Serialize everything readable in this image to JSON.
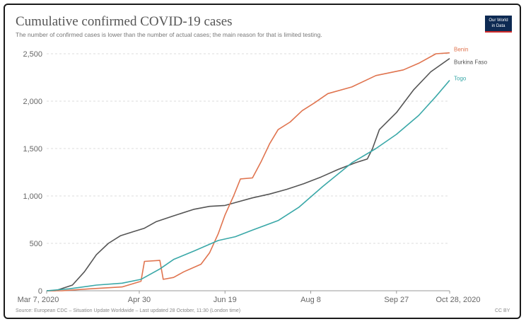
{
  "header": {
    "title": "Cumulative confirmed COVID-19 cases",
    "subtitle": "The number of confirmed cases is lower than the number of actual cases; the main reason for that is limited testing.",
    "logo_line1": "Our World",
    "logo_line2": "in Data"
  },
  "footer": {
    "source": "Source: European CDC – Situation Update Worldwide – Last updated 28 October, 11:30 (London time)",
    "license": "CC BY"
  },
  "colors": {
    "Benin": "#e0744f",
    "Burkina Faso": "#555555",
    "Togo": "#3aa8a8"
  },
  "chart_data": {
    "type": "line",
    "title": "Cumulative confirmed COVID-19 cases",
    "xlabel": "",
    "ylabel": "",
    "x_start": "2020-03-07",
    "x_end": "2020-10-28",
    "ylim": [
      0,
      2500
    ],
    "yticks": [
      0,
      500,
      1000,
      1500,
      2000,
      2500
    ],
    "ytick_labels": [
      "0",
      "500",
      "1,000",
      "1,500",
      "2,000",
      "2,500"
    ],
    "xticks": [
      "2020-03-07",
      "2020-04-30",
      "2020-06-19",
      "2020-08-08",
      "2020-09-27",
      "2020-10-28"
    ],
    "xtick_labels": [
      "Mar 7, 2020",
      "Apr 30",
      "Jun 19",
      "Aug 8",
      "Sep 27",
      "Oct 28, 2020"
    ],
    "grid": true,
    "legend": "right-end labels",
    "series": [
      {
        "name": "Burkina Faso",
        "points": [
          [
            "2020-03-07",
            0
          ],
          [
            "2020-03-12",
            0
          ],
          [
            "2020-03-22",
            60
          ],
          [
            "2020-03-29",
            200
          ],
          [
            "2020-04-05",
            380
          ],
          [
            "2020-04-12",
            500
          ],
          [
            "2020-04-19",
            580
          ],
          [
            "2020-04-26",
            620
          ],
          [
            "2020-05-03",
            660
          ],
          [
            "2020-05-10",
            730
          ],
          [
            "2020-05-20",
            790
          ],
          [
            "2020-06-01",
            860
          ],
          [
            "2020-06-10",
            890
          ],
          [
            "2020-06-19",
            900
          ],
          [
            "2020-06-25",
            930
          ],
          [
            "2020-07-05",
            980
          ],
          [
            "2020-07-15",
            1020
          ],
          [
            "2020-07-25",
            1070
          ],
          [
            "2020-08-04",
            1130
          ],
          [
            "2020-08-14",
            1200
          ],
          [
            "2020-08-24",
            1280
          ],
          [
            "2020-09-03",
            1350
          ],
          [
            "2020-09-10",
            1390
          ],
          [
            "2020-09-13",
            1500
          ],
          [
            "2020-09-17",
            1700
          ],
          [
            "2020-09-27",
            1880
          ],
          [
            "2020-10-07",
            2120
          ],
          [
            "2020-10-17",
            2310
          ],
          [
            "2020-10-28",
            2450
          ]
        ]
      },
      {
        "name": "Benin",
        "points": [
          [
            "2020-03-07",
            0
          ],
          [
            "2020-03-16",
            0
          ],
          [
            "2020-04-01",
            20
          ],
          [
            "2020-04-20",
            40
          ],
          [
            "2020-05-01",
            100
          ],
          [
            "2020-05-03",
            310
          ],
          [
            "2020-05-12",
            320
          ],
          [
            "2020-05-14",
            120
          ],
          [
            "2020-05-20",
            140
          ],
          [
            "2020-05-26",
            200
          ],
          [
            "2020-06-05",
            280
          ],
          [
            "2020-06-10",
            400
          ],
          [
            "2020-06-15",
            600
          ],
          [
            "2020-06-19",
            800
          ],
          [
            "2020-06-24",
            1000
          ],
          [
            "2020-06-28",
            1180
          ],
          [
            "2020-07-05",
            1190
          ],
          [
            "2020-07-10",
            1360
          ],
          [
            "2020-07-15",
            1550
          ],
          [
            "2020-07-20",
            1700
          ],
          [
            "2020-07-27",
            1780
          ],
          [
            "2020-08-03",
            1900
          ],
          [
            "2020-08-10",
            1980
          ],
          [
            "2020-08-18",
            2080
          ],
          [
            "2020-09-01",
            2150
          ],
          [
            "2020-09-15",
            2270
          ],
          [
            "2020-10-01",
            2330
          ],
          [
            "2020-10-10",
            2400
          ],
          [
            "2020-10-20",
            2500
          ],
          [
            "2020-10-28",
            2510
          ]
        ]
      },
      {
        "name": "Togo",
        "points": [
          [
            "2020-03-07",
            0
          ],
          [
            "2020-03-20",
            20
          ],
          [
            "2020-04-05",
            60
          ],
          [
            "2020-04-20",
            80
          ],
          [
            "2020-05-01",
            120
          ],
          [
            "2020-05-12",
            230
          ],
          [
            "2020-05-20",
            330
          ],
          [
            "2020-06-01",
            420
          ],
          [
            "2020-06-15",
            530
          ],
          [
            "2020-06-25",
            570
          ],
          [
            "2020-07-05",
            640
          ],
          [
            "2020-07-20",
            740
          ],
          [
            "2020-08-01",
            880
          ],
          [
            "2020-08-15",
            1100
          ],
          [
            "2020-09-01",
            1350
          ],
          [
            "2020-09-15",
            1500
          ],
          [
            "2020-09-27",
            1650
          ],
          [
            "2020-10-10",
            1850
          ],
          [
            "2020-10-20",
            2050
          ],
          [
            "2020-10-28",
            2220
          ]
        ]
      }
    ]
  }
}
